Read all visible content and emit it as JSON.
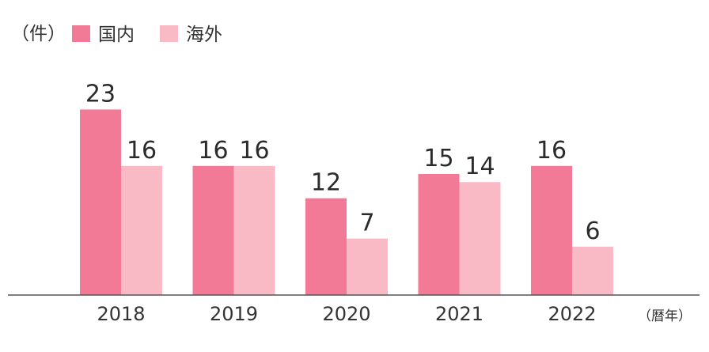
{
  "chart_data": {
    "type": "bar",
    "unit_label": "（件）",
    "x_unit_label": "（暦年）",
    "categories": [
      "2018",
      "2019",
      "2020",
      "2021",
      "2022"
    ],
    "series": [
      {
        "name": "国内",
        "color": "#f27a96",
        "values": [
          23,
          16,
          12,
          15,
          16
        ]
      },
      {
        "name": "海外",
        "color": "#fabac5",
        "values": [
          16,
          16,
          7,
          14,
          6
        ]
      }
    ],
    "ylim": [
      0,
      25
    ],
    "legend_position": "top-left",
    "grid": false
  }
}
